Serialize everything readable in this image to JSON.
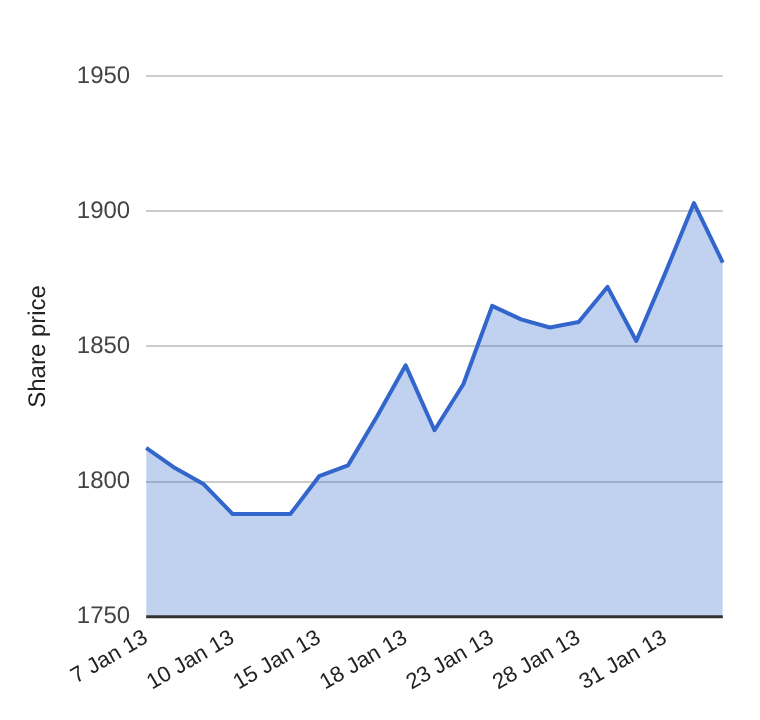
{
  "chart_data": {
    "type": "area",
    "ylabel": "Share price",
    "categories": [
      "7 Jan 13",
      null,
      null,
      "10 Jan 13",
      null,
      null,
      "15 Jan 13",
      null,
      null,
      "18 Jan 13",
      null,
      null,
      "23 Jan 13",
      null,
      null,
      "28 Jan 13",
      null,
      null,
      "31 Jan 13",
      null,
      null
    ],
    "series": [
      {
        "color": "#3366cc",
        "values": [
          1812.5,
          1805,
          1799,
          1788,
          1788,
          1788,
          1802,
          1806,
          1824,
          1843,
          1819,
          1836,
          1865,
          1860,
          1857,
          1859,
          1872,
          1852,
          1877,
          1903,
          1881
        ]
      }
    ],
    "ylim": [
      1750,
      1950
    ],
    "yticks": [
      1750,
      1800,
      1850,
      1900,
      1950
    ],
    "grid": "y",
    "legend": false,
    "marker": "none"
  }
}
